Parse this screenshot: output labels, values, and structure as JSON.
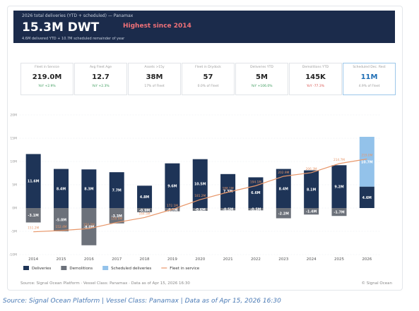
{
  "header": {
    "subtitle": "2026 total deliveries (YTD + scheduled) — Panamax",
    "value": "15.3M DWT",
    "highlight": "Highest since 2014",
    "note": "4.6M delivered YTD  +  10.7M scheduled remainder of year"
  },
  "kpis": [
    {
      "label": "Fleet in Service",
      "value": "219.0M",
      "change": "YoY +2.9%"
    },
    {
      "label": "Avg Fleet Age",
      "value": "12.7",
      "change": "YoY +2.3%"
    },
    {
      "label": "Assets >15y",
      "value": "38M",
      "change": "17% of Fleet"
    },
    {
      "label": "Fleet in Drydock",
      "value": "57",
      "change": "0.0% of Fleet"
    },
    {
      "label": "Deliveries YTD",
      "value": "5M",
      "change": "YoY +106.0%"
    },
    {
      "label": "Demolitions YTD",
      "value": "145K",
      "change": "YoY -77.3%"
    },
    {
      "label": "Scheduled Dec. Rest",
      "value": "11M",
      "change": "4.9% of Fleet"
    }
  ],
  "chart_data": {
    "type": "bar",
    "categories": [
      "2014",
      "2015",
      "2016",
      "2017",
      "2018",
      "2019",
      "2020",
      "2021",
      "2022",
      "2023",
      "2024",
      "2025",
      "2026"
    ],
    "ylim": [
      -10,
      20
    ],
    "yticks": [
      {
        "value": -10,
        "label": "-10M"
      },
      {
        "value": -5,
        "label": "-5M"
      },
      {
        "value": 0,
        "label": "0M"
      },
      {
        "value": 5,
        "label": "5M"
      },
      {
        "value": 10,
        "label": "10M"
      },
      {
        "value": 15,
        "label": "15M"
      },
      {
        "value": 20,
        "label": "20M"
      }
    ],
    "y2lim": [
      130,
      260
    ],
    "grid": true,
    "series": [
      {
        "name": "Deliveries",
        "color": "#1e3457",
        "values": [
          11.6,
          8.4,
          8.3,
          7.7,
          4.8,
          9.6,
          10.5,
          7.3,
          6.6,
          8.4,
          8.1,
          9.2,
          4.6
        ],
        "value_labels": [
          "11.6M",
          "8.4M",
          "8.3M",
          "7.7M",
          "4.8M",
          "9.6M",
          "10.5M",
          "7.3M",
          "6.6M",
          "8.4M",
          "8.1M",
          "9.2M",
          "4.6M"
        ]
      },
      {
        "name": "Demolitions",
        "color": "#6c717a",
        "values": [
          -3.1,
          -5.0,
          -8.0,
          -3.3,
          -0.9,
          -0.7,
          -0.6,
          -0.5,
          -0.5,
          -2.2,
          -1.4,
          -1.7,
          null
        ],
        "value_labels": [
          "-3.1M",
          "-5.0M",
          "-8.0M",
          "-3.3M",
          "-0.9M",
          "-0.7M",
          "-0.6M",
          "-0.5M",
          "-0.5M",
          "-2.2M",
          "-1.4M",
          "-1.7M",
          null
        ]
      },
      {
        "name": "Scheduled deliveries",
        "color": "#93c2ea",
        "values": [
          null,
          null,
          null,
          null,
          null,
          null,
          null,
          null,
          null,
          null,
          null,
          null,
          10.7
        ],
        "value_labels": [
          null,
          null,
          null,
          null,
          null,
          null,
          null,
          null,
          null,
          null,
          null,
          null,
          "10.7M"
        ]
      },
      {
        "name": "Fleet in service",
        "type": "line",
        "axis": "y2",
        "color": "#e8976a",
        "values": [
          151.2,
          152.4,
          154.2,
          159.9,
          164.5,
          172.1,
          181.2,
          188.1,
          194.1,
          202.9,
          206.3,
          214.7,
          219.0
        ],
        "value_labels": [
          "151.2M",
          "152.4M",
          "154.2M",
          "159.9M",
          "164.5M",
          "172.1M",
          "181.2M",
          "188.1M",
          "194.1M",
          "202.9M",
          "206.3M",
          "214.7M",
          "219.0M"
        ]
      }
    ]
  },
  "footer": {
    "source": "Source: Signal Ocean Platform  ·  Vessel Class: Panamax  ·  Data as of Apr 15, 2026 16:30",
    "copyright": "© Signal Ocean"
  },
  "caption": "Source: Signal Ocean Platform | Vessel Class: Panamax | Data as of Apr 15, 2026 16:30"
}
